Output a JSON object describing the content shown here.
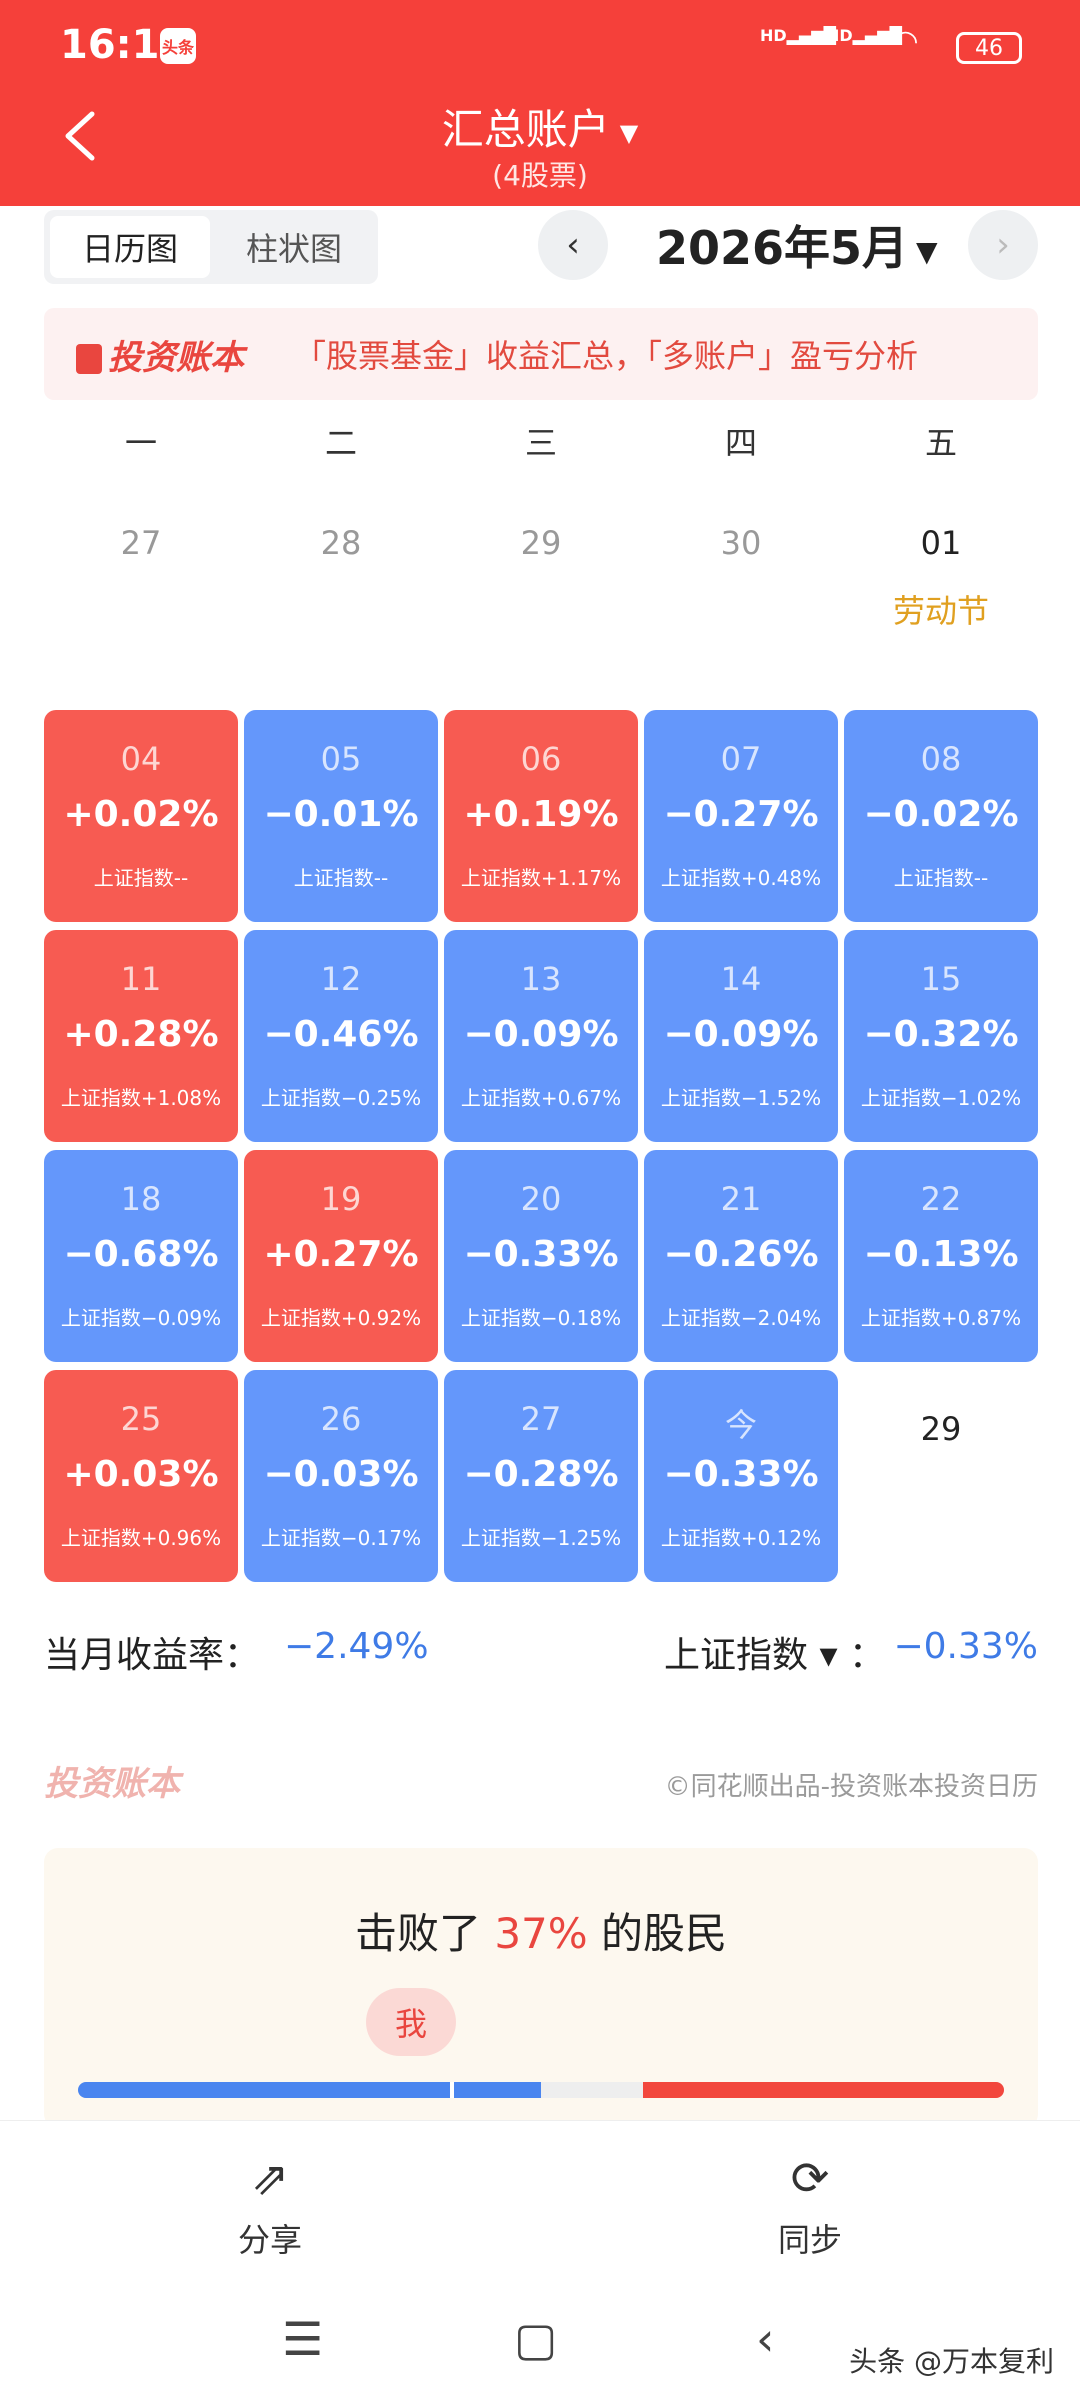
{
  "status": {
    "time": "16:11",
    "app_badge": "头条",
    "sig1": "HD",
    "sig2": "HD",
    "battery": "46"
  },
  "header": {
    "title": "汇总账户",
    "subtitle": "(4股票)"
  },
  "view_toggle": {
    "calendar": "日历图",
    "bar": "柱状图"
  },
  "month": "2026年5月",
  "banner": {
    "logo": "投资账本",
    "text": "「股票基金」收益汇总，「多账户」盈亏分析"
  },
  "weekdays": [
    "一",
    "二",
    "三",
    "四",
    "五"
  ],
  "prev_days": [
    "27",
    "28",
    "29",
    "30"
  ],
  "first_day": {
    "day": "01",
    "holiday": "劳动节"
  },
  "weeks": [
    [
      {
        "day": "04",
        "pct": "+0.02%",
        "idx": "上证指数--",
        "trend": "up"
      },
      {
        "day": "05",
        "pct": "−0.01%",
        "idx": "上证指数--",
        "trend": "down"
      },
      {
        "day": "06",
        "pct": "+0.19%",
        "idx": "上证指数+1.17%",
        "trend": "up"
      },
      {
        "day": "07",
        "pct": "−0.27%",
        "idx": "上证指数+0.48%",
        "trend": "down"
      },
      {
        "day": "08",
        "pct": "−0.02%",
        "idx": "上证指数--",
        "trend": "down"
      }
    ],
    [
      {
        "day": "11",
        "pct": "+0.28%",
        "idx": "上证指数+1.08%",
        "trend": "up"
      },
      {
        "day": "12",
        "pct": "−0.46%",
        "idx": "上证指数−0.25%",
        "trend": "down"
      },
      {
        "day": "13",
        "pct": "−0.09%",
        "idx": "上证指数+0.67%",
        "trend": "down"
      },
      {
        "day": "14",
        "pct": "−0.09%",
        "idx": "上证指数−1.52%",
        "trend": "down"
      },
      {
        "day": "15",
        "pct": "−0.32%",
        "idx": "上证指数−1.02%",
        "trend": "down"
      }
    ],
    [
      {
        "day": "18",
        "pct": "−0.68%",
        "idx": "上证指数−0.09%",
        "trend": "down"
      },
      {
        "day": "19",
        "pct": "+0.27%",
        "idx": "上证指数+0.92%",
        "trend": "up"
      },
      {
        "day": "20",
        "pct": "−0.33%",
        "idx": "上证指数−0.18%",
        "trend": "down"
      },
      {
        "day": "21",
        "pct": "−0.26%",
        "idx": "上证指数−2.04%",
        "trend": "down"
      },
      {
        "day": "22",
        "pct": "−0.13%",
        "idx": "上证指数+0.87%",
        "trend": "down"
      }
    ],
    [
      {
        "day": "25",
        "pct": "+0.03%",
        "idx": "上证指数+0.96%",
        "trend": "up"
      },
      {
        "day": "26",
        "pct": "−0.03%",
        "idx": "上证指数−0.17%",
        "trend": "down"
      },
      {
        "day": "27",
        "pct": "−0.28%",
        "idx": "上证指数−1.25%",
        "trend": "down"
      },
      {
        "day": "今",
        "pct": "−0.33%",
        "idx": "上证指数+0.12%",
        "trend": "down"
      }
    ]
  ],
  "future_day": "29",
  "summary": {
    "month_label": "当月收益率：",
    "month_value": "−2.49%",
    "index_label": "上证指数 ▾ ：",
    "index_value": "−0.33%"
  },
  "footer": {
    "logo": "投资账本",
    "copyright": "©同花顺出品-投资账本投资日历"
  },
  "beat": {
    "prefix": "击败了 ",
    "percent": "37%",
    "suffix": " 的股民",
    "me": "我",
    "beat_fraction": 0.37
  },
  "actions": {
    "share": "分享",
    "sync": "同步"
  },
  "watermark": "头条 @万本复利",
  "colors": {
    "up": "#f75b52",
    "down": "#6497fb",
    "brand": "#f5403a",
    "holiday": "#e0a020"
  }
}
